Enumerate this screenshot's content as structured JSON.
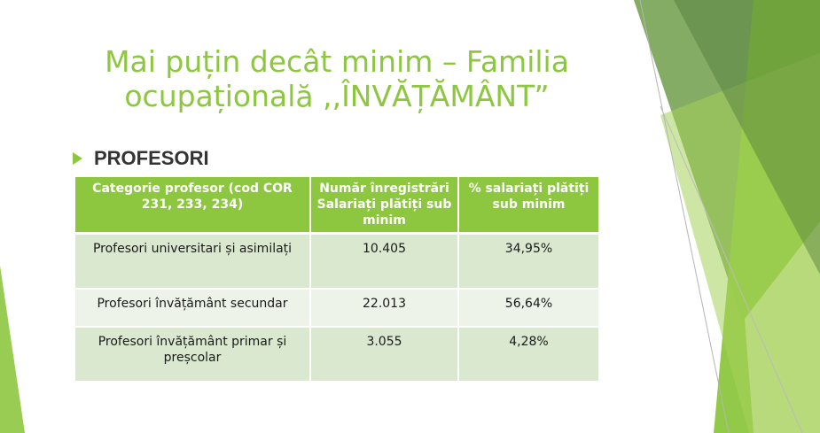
{
  "slide": {
    "title_line1": "Mai puțin decât minim – Familia",
    "title_line2": "ocupațională ,,ÎNVĂȚĂMÂNT”",
    "bullet": "PROFESORI"
  },
  "table": {
    "headers": [
      "Categorie profesor (cod COR 231, 233, 234)",
      "Număr înregistrări Salariați plătiți sub minim",
      "% salariați plătiți sub minim"
    ],
    "rows": [
      [
        "Profesori universitari și asimilați",
        "10.405",
        "34,95%"
      ],
      [
        "Profesori învățământ secundar",
        "22.013",
        "56,64%"
      ],
      [
        "Profesori învățământ primar și preșcolar",
        "3.055",
        "4,28%"
      ]
    ]
  },
  "colors": {
    "accent": "#8dc63f",
    "row_odd": "#dae8cf",
    "row_even": "#edf3e9"
  }
}
